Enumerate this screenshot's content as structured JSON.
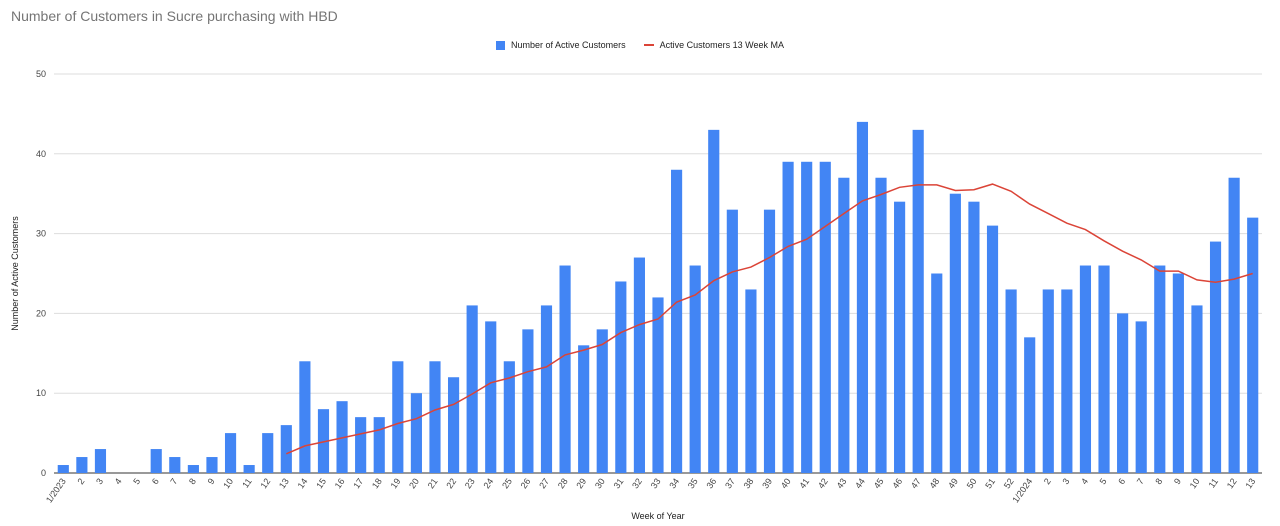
{
  "chart_data": {
    "type": "bar",
    "title": "Number of Customers in Sucre purchasing with HBD",
    "xlabel": "Week of Year",
    "ylabel": "Number of Active Customers",
    "ylim": [
      0,
      50
    ],
    "yticks": [
      0,
      10,
      20,
      30,
      40,
      50
    ],
    "grid": true,
    "legend_position": "top",
    "categories": [
      "1/2023",
      "2",
      "3",
      "4",
      "5",
      "6",
      "7",
      "8",
      "9",
      "10",
      "11",
      "12",
      "13",
      "14",
      "15",
      "16",
      "17",
      "18",
      "19",
      "20",
      "21",
      "22",
      "23",
      "24",
      "25",
      "26",
      "27",
      "28",
      "29",
      "30",
      "31",
      "32",
      "33",
      "34",
      "35",
      "36",
      "37",
      "38",
      "39",
      "40",
      "41",
      "42",
      "43",
      "44",
      "45",
      "46",
      "47",
      "48",
      "49",
      "50",
      "51",
      "52",
      "1/2024",
      "2",
      "3",
      "4",
      "5",
      "6",
      "7",
      "8",
      "9",
      "10",
      "11",
      "12",
      "13"
    ],
    "series": [
      {
        "name": "Number of Active Customers",
        "type": "bar",
        "color": "#4285f4",
        "values": [
          1,
          2,
          3,
          0,
          0,
          3,
          2,
          1,
          2,
          5,
          1,
          5,
          6,
          14,
          8,
          9,
          7,
          7,
          14,
          10,
          14,
          12,
          21,
          19,
          14,
          18,
          21,
          26,
          16,
          18,
          24,
          27,
          22,
          38,
          26,
          43,
          33,
          23,
          33,
          39,
          39,
          39,
          37,
          44,
          37,
          34,
          43,
          25,
          35,
          34,
          31,
          23,
          17,
          23,
          23,
          26,
          26,
          20,
          19,
          26,
          25,
          21,
          29,
          37,
          32
        ]
      },
      {
        "name": "Active Customers 13 Week MA",
        "type": "line",
        "color": "#db4437",
        "values": [
          null,
          null,
          null,
          null,
          null,
          null,
          null,
          null,
          null,
          null,
          null,
          null,
          2.4,
          3.4,
          3.9,
          4.4,
          4.9,
          5.4,
          6.2,
          6.8,
          7.9,
          8.6,
          9.9,
          11.3,
          11.9,
          12.7,
          13.3,
          14.8,
          15.4,
          16.1,
          17.6,
          18.6,
          19.3,
          21.4,
          22.3,
          24.1,
          25.2,
          25.8,
          27.0,
          28.4,
          29.3,
          30.9,
          32.5,
          34.1,
          34.9,
          35.8,
          36.1,
          36.1,
          35.4,
          35.5,
          36.2,
          35.3,
          33.7,
          32.5,
          31.3,
          30.5,
          29.1,
          27.8,
          26.7,
          25.3,
          25.3,
          24.2,
          23.9,
          24.3,
          25.0
        ]
      }
    ]
  }
}
